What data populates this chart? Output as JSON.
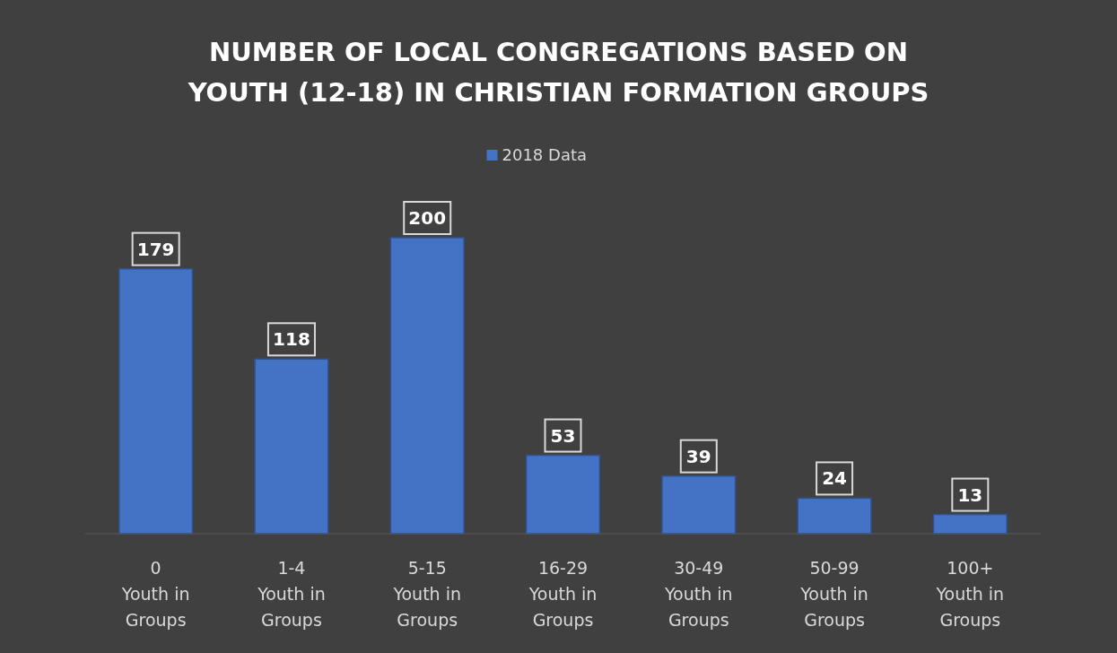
{
  "chart_data": {
    "type": "bar",
    "title": "NUMBER OF LOCAL CONGREGATIONS BASED ON\nYOUTH (12-18) IN CHRISTIAN FORMATION GROUPS",
    "categories": [
      "0\nYouth in\nGroups",
      "1-4\nYouth in\nGroups",
      "5-15\nYouth in\nGroups",
      "16-29\nYouth in\nGroups",
      "30-49\nYouth in\nGroups",
      "50-99\nYouth in\nGroups",
      "100+\nYouth in\nGroups"
    ],
    "series": [
      {
        "name": "2018 Data",
        "color": "#4472c4",
        "values": [
          179,
          118,
          200,
          53,
          39,
          24,
          13
        ]
      }
    ],
    "data_labels": true,
    "legend": "top"
  }
}
